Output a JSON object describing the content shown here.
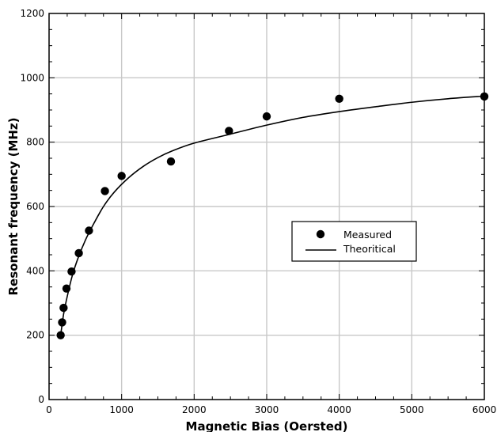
{
  "chart_data": {
    "type": "scatter",
    "title": "",
    "xlabel": "Magnetic Bias (Oersted)",
    "ylabel": "Resonant frequency (MHz)",
    "xlim": [
      0,
      6000
    ],
    "ylim": [
      0,
      1200
    ],
    "xticks": [
      0,
      1000,
      2000,
      3000,
      4000,
      5000,
      6000
    ],
    "yticks": [
      0,
      200,
      400,
      600,
      800,
      1000,
      1200
    ],
    "grid": true,
    "legend_position": "right-middle",
    "series": [
      {
        "name": "Measured",
        "kind": "scatter",
        "marker": "filled-circle",
        "color": "#000000",
        "points": [
          {
            "x": 160,
            "y": 200
          },
          {
            "x": 180,
            "y": 240
          },
          {
            "x": 200,
            "y": 285
          },
          {
            "x": 240,
            "y": 345
          },
          {
            "x": 310,
            "y": 398
          },
          {
            "x": 410,
            "y": 455
          },
          {
            "x": 550,
            "y": 525
          },
          {
            "x": 770,
            "y": 648
          },
          {
            "x": 1000,
            "y": 695
          },
          {
            "x": 1680,
            "y": 740
          },
          {
            "x": 2480,
            "y": 835
          },
          {
            "x": 3000,
            "y": 880
          },
          {
            "x": 4000,
            "y": 935
          },
          {
            "x": 6000,
            "y": 942
          }
        ]
      },
      {
        "name": "Theoritical",
        "kind": "line",
        "color": "#000000",
        "points": [
          {
            "x": 160,
            "y": 200
          },
          {
            "x": 200,
            "y": 265
          },
          {
            "x": 250,
            "y": 320
          },
          {
            "x": 320,
            "y": 385
          },
          {
            "x": 400,
            "y": 440
          },
          {
            "x": 500,
            "y": 495
          },
          {
            "x": 600,
            "y": 540
          },
          {
            "x": 750,
            "y": 600
          },
          {
            "x": 900,
            "y": 645
          },
          {
            "x": 1100,
            "y": 690
          },
          {
            "x": 1300,
            "y": 725
          },
          {
            "x": 1500,
            "y": 752
          },
          {
            "x": 1700,
            "y": 773
          },
          {
            "x": 2000,
            "y": 797
          },
          {
            "x": 2500,
            "y": 825
          },
          {
            "x": 3000,
            "y": 853
          },
          {
            "x": 3500,
            "y": 877
          },
          {
            "x": 4000,
            "y": 895
          },
          {
            "x": 4500,
            "y": 910
          },
          {
            "x": 5000,
            "y": 924
          },
          {
            "x": 5500,
            "y": 935
          },
          {
            "x": 6000,
            "y": 943
          }
        ]
      }
    ]
  }
}
